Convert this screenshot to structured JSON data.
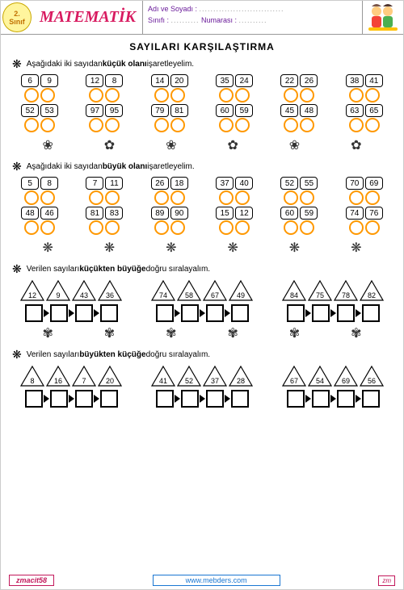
{
  "header": {
    "grade_num": "2.",
    "grade_word": "Sınıf",
    "subject": "MATEMATİK",
    "name_label": "Adı ve Soyadı :",
    "class_label": "Sınıfı :",
    "number_label": "Numarası :"
  },
  "title": "SAYILARI  KARŞILAŞTIRMA",
  "instr1_a": "Aşağıdaki iki sayıdan ",
  "instr1_b": "küçük olanı",
  "instr1_c": "  işaretleyelim.",
  "instr2_a": "Aşağıdaki iki sayıdan ",
  "instr2_b": "büyük olanı",
  "instr2_c": "  işaretleyelim.",
  "instr3_a": "Verilen sayıları ",
  "instr3_b": "küçükten büyüğe",
  "instr3_c": " doğru sıralayalım.",
  "instr4_a": "Verilen sayıları ",
  "instr4_b": "büyükten küçüğe",
  "instr4_c": " doğru sıralayalım.",
  "section1": [
    [
      [
        "6",
        "9"
      ],
      [
        "12",
        "8"
      ],
      [
        "14",
        "20"
      ],
      [
        "35",
        "24"
      ],
      [
        "22",
        "26"
      ],
      [
        "38",
        "41"
      ]
    ],
    [
      [
        "52",
        "53"
      ],
      [
        "97",
        "95"
      ],
      [
        "79",
        "81"
      ],
      [
        "60",
        "59"
      ],
      [
        "45",
        "48"
      ],
      [
        "63",
        "65"
      ]
    ]
  ],
  "section2": [
    [
      [
        "5",
        "8"
      ],
      [
        "7",
        "11"
      ],
      [
        "26",
        "18"
      ],
      [
        "37",
        "40"
      ],
      [
        "52",
        "55"
      ],
      [
        "70",
        "69"
      ]
    ],
    [
      [
        "48",
        "46"
      ],
      [
        "81",
        "83"
      ],
      [
        "89",
        "90"
      ],
      [
        "15",
        "12"
      ],
      [
        "60",
        "59"
      ],
      [
        "74",
        "76"
      ]
    ]
  ],
  "section3": [
    [
      "12",
      "9",
      "43",
      "36"
    ],
    [
      "74",
      "58",
      "67",
      "49"
    ],
    [
      "84",
      "75",
      "78",
      "82"
    ]
  ],
  "section4": [
    [
      "8",
      "16",
      "7",
      "20"
    ],
    [
      "41",
      "52",
      "37",
      "28"
    ],
    [
      "67",
      "54",
      "69",
      "56"
    ]
  ],
  "deco1": [
    "❀",
    "✿",
    "❀",
    "✿",
    "❀",
    "✿"
  ],
  "deco2": [
    "❋",
    "❋",
    "❋",
    "❋",
    "❋",
    "❋"
  ],
  "deco3": [
    "✾",
    "✾",
    "✾",
    "✾",
    "✾",
    "✾"
  ],
  "footer": {
    "tag": "zmacit58",
    "url": "www.mebders.com",
    "sig": "zm"
  },
  "colors": {
    "circle": "#ff9800",
    "subject": "#d81b60",
    "info": "#6a1b9a"
  }
}
